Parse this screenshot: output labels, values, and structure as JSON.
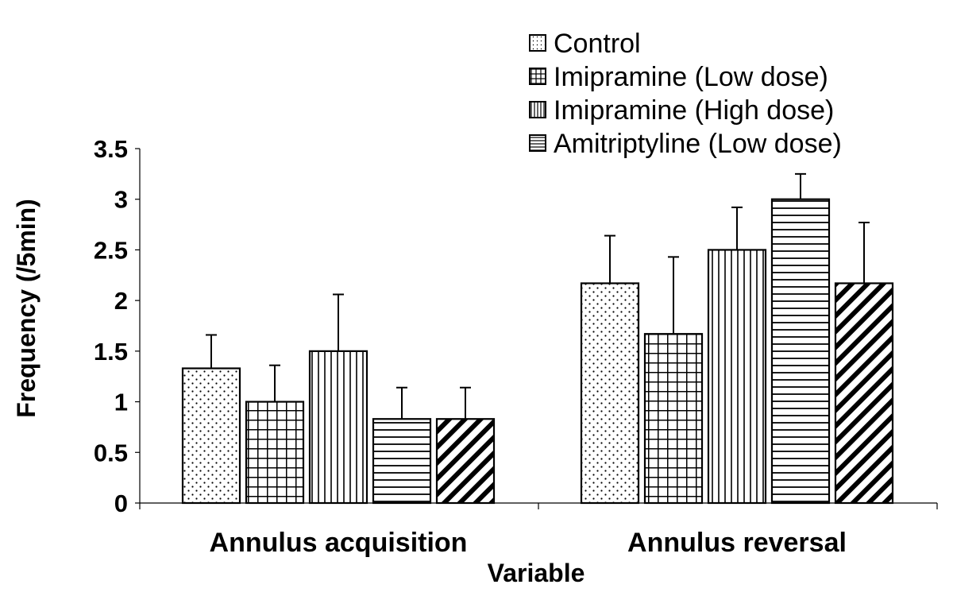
{
  "chart_data": {
    "type": "bar",
    "title": "",
    "xlabel": "Variable",
    "ylabel": "Frequency (/5min)",
    "ylim": [
      0,
      3.5
    ],
    "yticks": [
      0,
      0.5,
      1,
      1.5,
      2,
      2.5,
      3,
      3.5
    ],
    "ytick_labels": [
      "0",
      "0.5",
      "1",
      "1.5",
      "2",
      "2.5",
      "3",
      "3.5"
    ],
    "grid": false,
    "legend_position": "top-right",
    "categories": [
      "Annulus acquisition",
      "Annulus reversal"
    ],
    "series": [
      {
        "name": "Control",
        "pattern": "dots",
        "values": [
          1.33,
          2.17
        ],
        "errors": [
          0.33,
          0.47
        ]
      },
      {
        "name": "Imipramine (Low dose)",
        "pattern": "grid",
        "values": [
          1.0,
          1.67
        ],
        "errors": [
          0.36,
          0.76
        ]
      },
      {
        "name": "Imipramine (High dose)",
        "pattern": "vertical",
        "values": [
          1.5,
          2.5
        ],
        "errors": [
          0.56,
          0.42
        ]
      },
      {
        "name": "Amitriptyline (Low dose)",
        "pattern": "horizontal",
        "values": [
          0.83,
          3.0
        ],
        "errors": [
          0.31,
          0.25
        ]
      },
      {
        "name": "",
        "pattern": "diagonal",
        "values": [
          0.83,
          2.17
        ],
        "errors": [
          0.31,
          0.6
        ]
      }
    ]
  }
}
